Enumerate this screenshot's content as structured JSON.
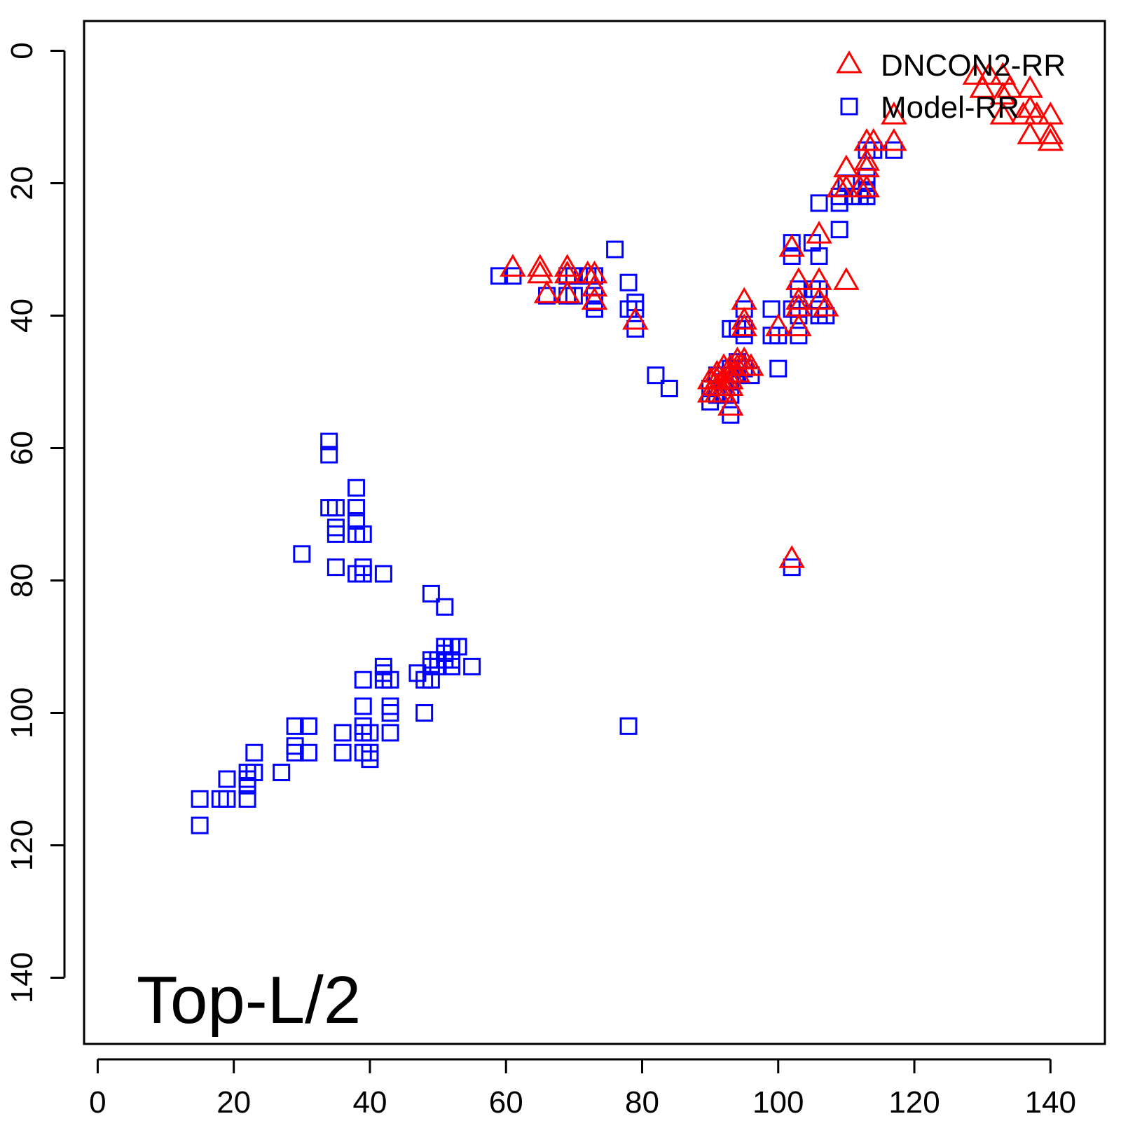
{
  "chart_data": {
    "type": "scatter",
    "title": "",
    "xlabel": "",
    "ylabel": "",
    "annotation": "Top-L/2",
    "xlim": [
      -2,
      148
    ],
    "ylim": [
      -4.5,
      150
    ],
    "y_inverted": true,
    "x_ticks": [
      0,
      20,
      40,
      60,
      80,
      100,
      120,
      140
    ],
    "y_ticks": [
      0,
      20,
      40,
      60,
      80,
      100,
      120,
      140
    ],
    "grid": false,
    "legend_position": "top-right",
    "series": [
      {
        "name": "DNCON2-RR",
        "marker": "triangle",
        "color": "#ff0000",
        "points": [
          [
            129,
            4
          ],
          [
            130,
            6
          ],
          [
            131,
            4
          ],
          [
            133,
            4
          ],
          [
            133,
            7
          ],
          [
            133,
            10
          ],
          [
            134,
            6
          ],
          [
            137,
            6
          ],
          [
            137,
            9
          ],
          [
            138,
            10
          ],
          [
            136,
            10
          ],
          [
            137,
            13
          ],
          [
            140,
            10
          ],
          [
            140,
            13
          ],
          [
            140,
            14
          ],
          [
            117,
            10
          ],
          [
            117,
            14
          ],
          [
            114,
            14
          ],
          [
            113,
            14
          ],
          [
            113,
            17
          ],
          [
            113,
            18
          ],
          [
            113,
            21
          ],
          [
            112,
            21
          ],
          [
            110,
            18
          ],
          [
            110,
            21
          ],
          [
            109,
            21
          ],
          [
            61,
            33
          ],
          [
            65,
            33
          ],
          [
            65,
            34
          ],
          [
            66,
            37
          ],
          [
            69,
            33
          ],
          [
            69,
            34
          ],
          [
            69,
            37
          ],
          [
            72,
            34
          ],
          [
            73,
            34
          ],
          [
            73,
            36
          ],
          [
            73,
            38
          ],
          [
            79,
            41
          ],
          [
            102,
            30
          ],
          [
            106,
            28
          ],
          [
            106,
            35
          ],
          [
            103,
            35
          ],
          [
            103,
            38
          ],
          [
            103,
            39
          ],
          [
            103,
            42
          ],
          [
            106,
            38
          ],
          [
            107,
            39
          ],
          [
            100,
            42
          ],
          [
            110,
            35
          ],
          [
            95,
            38
          ],
          [
            95,
            41
          ],
          [
            95,
            42
          ],
          [
            90,
            50
          ],
          [
            90,
            52
          ],
          [
            91,
            49
          ],
          [
            91,
            50
          ],
          [
            91,
            51
          ],
          [
            92,
            48
          ],
          [
            92,
            50
          ],
          [
            92,
            51
          ],
          [
            93,
            48
          ],
          [
            93,
            49
          ],
          [
            93,
            50
          ],
          [
            93,
            51
          ],
          [
            93,
            54
          ],
          [
            94,
            47
          ],
          [
            94,
            48
          ],
          [
            94,
            49
          ],
          [
            95,
            47
          ],
          [
            95,
            48
          ],
          [
            96,
            48
          ],
          [
            91,
            52
          ],
          [
            92,
            52
          ],
          [
            102,
            77
          ]
        ]
      },
      {
        "name": "Model-RR",
        "marker": "square",
        "color": "#0000ff",
        "points": [
          [
            15,
            113
          ],
          [
            15,
            117
          ],
          [
            18,
            113
          ],
          [
            19,
            110
          ],
          [
            19,
            113
          ],
          [
            22,
            109
          ],
          [
            22,
            110
          ],
          [
            22,
            111
          ],
          [
            22,
            113
          ],
          [
            23,
            106
          ],
          [
            23,
            109
          ],
          [
            27,
            109
          ],
          [
            29,
            102
          ],
          [
            29,
            105
          ],
          [
            29,
            106
          ],
          [
            31,
            102
          ],
          [
            31,
            106
          ],
          [
            36,
            103
          ],
          [
            36,
            106
          ],
          [
            39,
            102
          ],
          [
            39,
            103
          ],
          [
            39,
            106
          ],
          [
            40,
            103
          ],
          [
            40,
            106
          ],
          [
            40,
            107
          ],
          [
            43,
            99
          ],
          [
            43,
            100
          ],
          [
            43,
            103
          ],
          [
            48,
            100
          ],
          [
            30,
            76
          ],
          [
            34,
            59
          ],
          [
            34,
            61
          ],
          [
            34,
            69
          ],
          [
            35,
            69
          ],
          [
            35,
            72
          ],
          [
            35,
            73
          ],
          [
            35,
            78
          ],
          [
            38,
            66
          ],
          [
            38,
            69
          ],
          [
            38,
            71
          ],
          [
            38,
            73
          ],
          [
            38,
            79
          ],
          [
            39,
            73
          ],
          [
            39,
            78
          ],
          [
            39,
            79
          ],
          [
            42,
            79
          ],
          [
            49,
            82
          ],
          [
            51,
            84
          ],
          [
            39,
            95
          ],
          [
            39,
            99
          ],
          [
            42,
            93
          ],
          [
            42,
            94
          ],
          [
            42,
            95
          ],
          [
            43,
            95
          ],
          [
            47,
            94
          ],
          [
            48,
            95
          ],
          [
            49,
            92
          ],
          [
            49,
            93
          ],
          [
            49,
            95
          ],
          [
            50,
            92
          ],
          [
            50,
            93
          ],
          [
            51,
            90
          ],
          [
            51,
            91
          ],
          [
            51,
            92
          ],
          [
            52,
            90
          ],
          [
            52,
            92
          ],
          [
            52,
            93
          ],
          [
            53,
            90
          ],
          [
            55,
            93
          ],
          [
            59,
            34
          ],
          [
            61,
            34
          ],
          [
            66,
            37
          ],
          [
            69,
            34
          ],
          [
            69,
            37
          ],
          [
            70,
            34
          ],
          [
            70,
            37
          ],
          [
            72,
            34
          ],
          [
            73,
            34
          ],
          [
            73,
            37
          ],
          [
            73,
            38
          ],
          [
            73,
            39
          ],
          [
            76,
            30
          ],
          [
            78,
            35
          ],
          [
            78,
            39
          ],
          [
            79,
            38
          ],
          [
            79,
            39
          ],
          [
            79,
            42
          ],
          [
            82,
            49
          ],
          [
            84,
            51
          ],
          [
            78,
            102
          ],
          [
            90,
            51
          ],
          [
            90,
            53
          ],
          [
            91,
            49
          ],
          [
            91,
            52
          ],
          [
            92,
            50
          ],
          [
            92,
            52
          ],
          [
            93,
            48
          ],
          [
            93,
            50
          ],
          [
            93,
            52
          ],
          [
            93,
            55
          ],
          [
            94,
            47
          ],
          [
            94,
            49
          ],
          [
            95,
            48
          ],
          [
            96,
            49
          ],
          [
            93,
            42
          ],
          [
            94,
            42
          ],
          [
            95,
            39
          ],
          [
            95,
            42
          ],
          [
            95,
            43
          ],
          [
            99,
            39
          ],
          [
            99,
            43
          ],
          [
            100,
            43
          ],
          [
            100,
            48
          ],
          [
            102,
            29
          ],
          [
            102,
            31
          ],
          [
            102,
            39
          ],
          [
            103,
            36
          ],
          [
            103,
            39
          ],
          [
            103,
            40
          ],
          [
            103,
            43
          ],
          [
            105,
            29
          ],
          [
            105,
            36
          ],
          [
            106,
            31
          ],
          [
            106,
            36
          ],
          [
            106,
            39
          ],
          [
            106,
            40
          ],
          [
            107,
            40
          ],
          [
            106,
            23
          ],
          [
            109,
            22
          ],
          [
            109,
            23
          ],
          [
            109,
            27
          ],
          [
            110,
            20
          ],
          [
            111,
            22
          ],
          [
            112,
            22
          ],
          [
            113,
            15
          ],
          [
            113,
            19
          ],
          [
            113,
            20
          ],
          [
            113,
            21
          ],
          [
            113,
            22
          ],
          [
            114,
            15
          ],
          [
            117,
            15
          ],
          [
            102,
            78
          ]
        ]
      }
    ]
  }
}
